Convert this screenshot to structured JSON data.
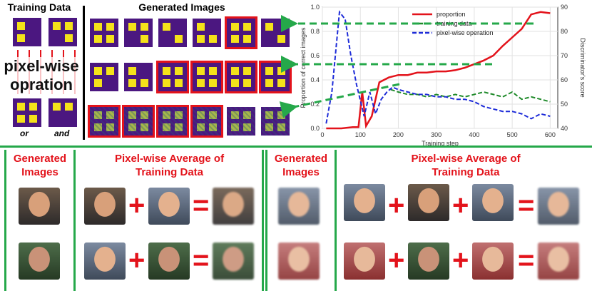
{
  "top_left": {
    "training_data_title": "Training Data",
    "generated_images_title": "Generated Images",
    "overlay_line1": "pixel-wise",
    "overlay_line2": "opration",
    "label_or": "or",
    "label_and": "and"
  },
  "bottom": {
    "left_generated_line1": "Generated",
    "left_generated_line2": "Images",
    "left_avg_line1": "Pixel-wise Average of",
    "left_avg_line2": "Training Data",
    "right_generated_line1": "Generated",
    "right_generated_line2": "Images",
    "right_avg_line1": "Pixel-wise Average of",
    "right_avg_line2": "Training Data",
    "plus": "+",
    "equals": "="
  },
  "colors": {
    "tile_bg": "#4b1780",
    "tile_square": "#f4e21a",
    "highlight": "#e3131b",
    "divider_green": "#25a84a",
    "text_red": "#e3131b"
  },
  "chart_data": {
    "type": "line",
    "xlabel": "Training step",
    "ylabel_left": "Proportion of correct images",
    "ylabel_right": "Discriminator's score",
    "xlim": [
      0,
      620
    ],
    "ylim_left": [
      0,
      1.0
    ],
    "ylim_right": [
      40,
      90
    ],
    "x_ticks": [
      "0",
      "100",
      "200",
      "300",
      "400",
      "500",
      "600"
    ],
    "y_ticks_left": [
      "0.0",
      "0.2",
      "0.4",
      "0.6",
      "0.8",
      "1.0"
    ],
    "y_ticks_right": [
      "40",
      "50",
      "60",
      "70",
      "80",
      "90"
    ],
    "legend_position": "top-right",
    "series": [
      {
        "name": "proportion",
        "color": "#e3131b",
        "style": "solid",
        "axis": "left",
        "x": [
          10,
          50,
          80,
          95,
          105,
          115,
          130,
          150,
          175,
          200,
          225,
          250,
          275,
          300,
          325,
          350,
          375,
          400,
          425,
          450,
          475,
          500,
          525,
          550,
          575,
          600
        ],
        "y": [
          0.0,
          0.0,
          0.01,
          0.01,
          0.3,
          0.02,
          0.1,
          0.38,
          0.42,
          0.44,
          0.44,
          0.46,
          0.46,
          0.47,
          0.47,
          0.48,
          0.5,
          0.53,
          0.56,
          0.6,
          0.68,
          0.75,
          0.82,
          0.94,
          0.96,
          0.95
        ]
      },
      {
        "name": "training data",
        "color": "#1f8a2a",
        "style": "dashed",
        "axis": "right",
        "x": [
          180,
          200,
          225,
          250,
          275,
          300,
          325,
          350,
          375,
          400,
          425,
          450,
          475,
          500,
          525,
          550,
          575,
          600
        ],
        "y": [
          56,
          55,
          54,
          54,
          53,
          54,
          53,
          54,
          53,
          54,
          55,
          54,
          53,
          55,
          52,
          53,
          52,
          51
        ]
      },
      {
        "name": "pixel-wise operation",
        "color": "#1d2bd8",
        "style": "dashed",
        "axis": "right",
        "x": [
          10,
          25,
          45,
          60,
          75,
          90,
          110,
          125,
          140,
          155,
          170,
          185,
          200,
          225,
          250,
          275,
          300,
          325,
          350,
          375,
          400,
          425,
          450,
          475,
          500,
          525,
          550,
          575,
          600
        ],
        "y": [
          42,
          55,
          88,
          85,
          70,
          58,
          45,
          55,
          46,
          52,
          55,
          57,
          56,
          55,
          54,
          54,
          53,
          53,
          52,
          52,
          51,
          49,
          48,
          47,
          47,
          46,
          44,
          46,
          45
        ]
      }
    ]
  }
}
